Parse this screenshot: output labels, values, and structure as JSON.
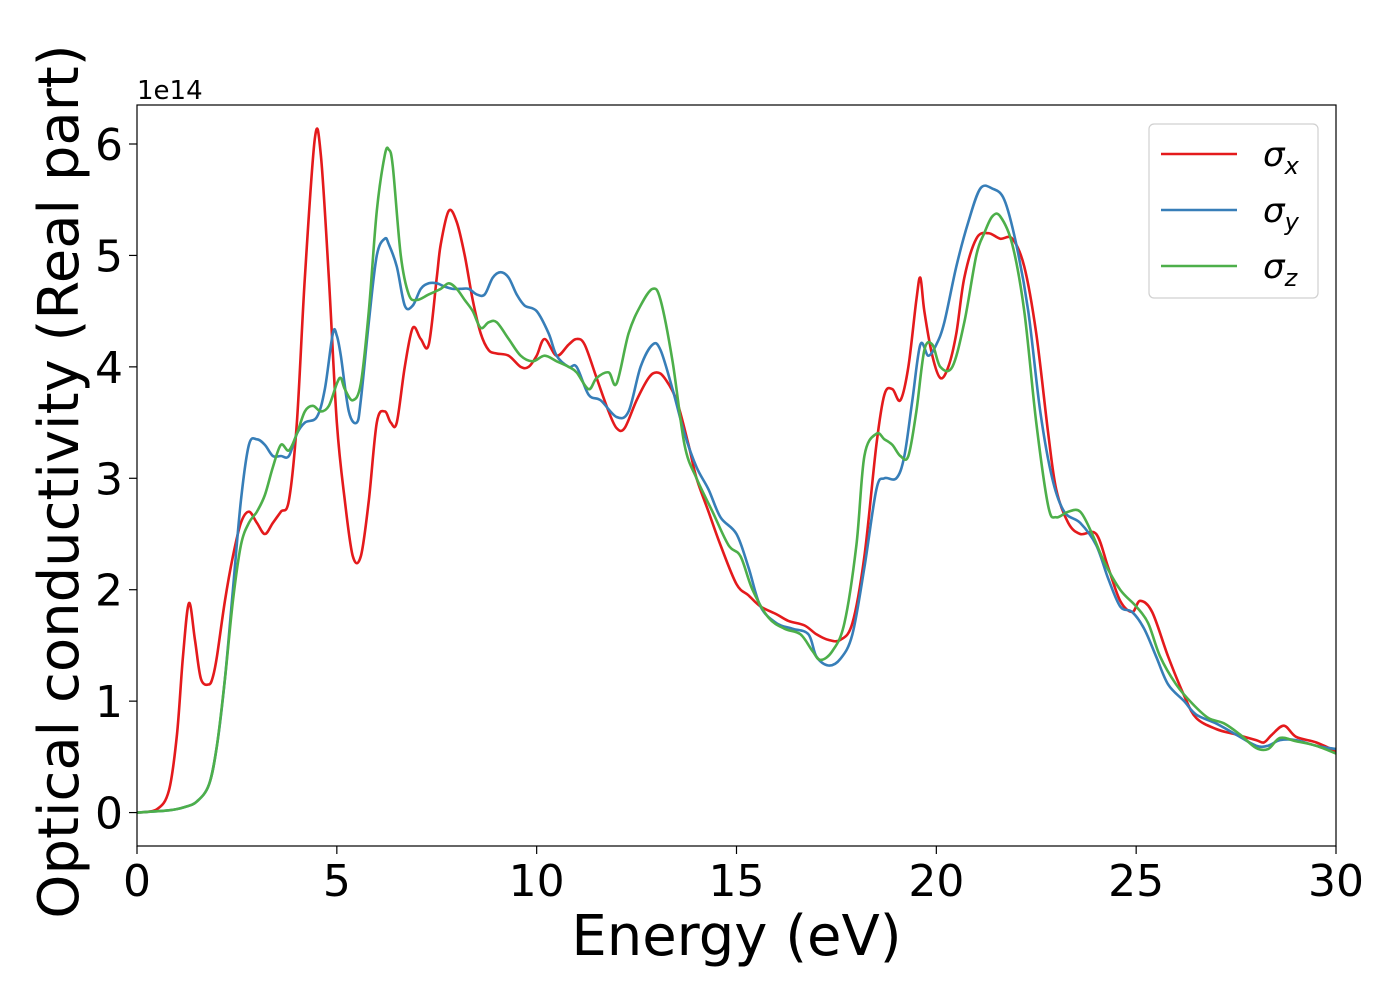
{
  "chart_data": {
    "type": "line",
    "title": "",
    "xlabel": "Energy (eV)",
    "ylabel": "Optical conductivity (Real part)",
    "offset_label": "1e14",
    "xlim": [
      0,
      30
    ],
    "ylim": [
      -0.3,
      6.35
    ],
    "y_multiplier": 100000000000000.0,
    "xticks": [
      0,
      5,
      10,
      15,
      20,
      25,
      30
    ],
    "yticks": [
      0,
      1,
      2,
      3,
      4,
      5,
      6
    ],
    "grid": false,
    "legend_position": "top-right",
    "series": [
      {
        "name": "σx",
        "legend": {
          "base": "σ",
          "sub": "x"
        },
        "color": "#e41a1c",
        "x": [
          0,
          0.5,
          0.8,
          1.0,
          1.15,
          1.3,
          1.45,
          1.6,
          1.8,
          1.9,
          2.0,
          2.2,
          2.4,
          2.6,
          2.8,
          3.0,
          3.2,
          3.4,
          3.6,
          3.8,
          4.0,
          4.2,
          4.45,
          4.6,
          4.8,
          5.0,
          5.2,
          5.4,
          5.6,
          5.8,
          6.0,
          6.2,
          6.35,
          6.5,
          6.7,
          6.9,
          7.1,
          7.3,
          7.5,
          7.6,
          7.8,
          8.0,
          8.2,
          8.4,
          8.6,
          8.8,
          9.0,
          9.3,
          9.6,
          9.8,
          10.0,
          10.2,
          10.5,
          10.8,
          11.0,
          11.2,
          11.5,
          11.8,
          12.0,
          12.2,
          12.5,
          12.8,
          13.0,
          13.2,
          13.5,
          13.8,
          14.0,
          14.3,
          14.6,
          15.0,
          15.3,
          15.6,
          16.0,
          16.3,
          16.7,
          17.0,
          17.3,
          17.6,
          17.9,
          18.2,
          18.5,
          18.7,
          18.9,
          19.1,
          19.3,
          19.5,
          19.6,
          19.7,
          19.9,
          20.1,
          20.3,
          20.5,
          20.7,
          21.0,
          21.3,
          21.6,
          21.9,
          22.2,
          22.5,
          22.8,
          23.0,
          23.3,
          23.6,
          24.0,
          24.3,
          24.6,
          24.9,
          25.1,
          25.4,
          25.8,
          26.2,
          26.5,
          27.0,
          27.5,
          28.0,
          28.2,
          28.4,
          28.7,
          29.0,
          29.5,
          30.0
        ],
        "y": [
          0.0,
          0.03,
          0.2,
          0.7,
          1.4,
          1.88,
          1.55,
          1.2,
          1.15,
          1.22,
          1.4,
          1.9,
          2.3,
          2.6,
          2.7,
          2.6,
          2.5,
          2.6,
          2.7,
          2.8,
          3.5,
          4.8,
          6.05,
          5.9,
          4.8,
          3.5,
          2.8,
          2.3,
          2.3,
          2.8,
          3.5,
          3.6,
          3.5,
          3.5,
          4.0,
          4.35,
          4.25,
          4.2,
          4.8,
          5.1,
          5.4,
          5.3,
          5.0,
          4.6,
          4.3,
          4.15,
          4.12,
          4.1,
          4.0,
          4.0,
          4.1,
          4.25,
          4.1,
          4.2,
          4.25,
          4.2,
          3.9,
          3.6,
          3.45,
          3.45,
          3.7,
          3.9,
          3.95,
          3.9,
          3.7,
          3.3,
          3.0,
          2.7,
          2.4,
          2.05,
          1.95,
          1.85,
          1.78,
          1.72,
          1.68,
          1.6,
          1.55,
          1.55,
          1.7,
          2.3,
          3.3,
          3.75,
          3.8,
          3.7,
          4.0,
          4.6,
          4.8,
          4.5,
          4.1,
          3.9,
          4.0,
          4.3,
          4.8,
          5.15,
          5.2,
          5.15,
          5.15,
          4.9,
          4.3,
          3.4,
          2.9,
          2.6,
          2.5,
          2.5,
          2.2,
          1.9,
          1.8,
          1.9,
          1.8,
          1.4,
          1.05,
          0.85,
          0.75,
          0.7,
          0.65,
          0.63,
          0.7,
          0.78,
          0.68,
          0.63,
          0.55
        ]
      },
      {
        "name": "σy",
        "legend": {
          "base": "σ",
          "sub": "y"
        },
        "color": "#377eb8",
        "x": [
          0,
          0.8,
          1.2,
          1.5,
          1.8,
          2.0,
          2.2,
          2.4,
          2.6,
          2.8,
          3.0,
          3.2,
          3.4,
          3.6,
          3.8,
          4.0,
          4.2,
          4.5,
          4.7,
          4.9,
          5.0,
          5.1,
          5.3,
          5.5,
          5.6,
          5.8,
          6.0,
          6.2,
          6.3,
          6.5,
          6.7,
          6.9,
          7.1,
          7.3,
          7.5,
          7.7,
          7.9,
          8.1,
          8.3,
          8.5,
          8.7,
          8.9,
          9.1,
          9.3,
          9.5,
          9.7,
          10.0,
          10.3,
          10.5,
          10.8,
          11.0,
          11.3,
          11.6,
          12.0,
          12.3,
          12.6,
          12.9,
          13.1,
          13.4,
          13.7,
          14.0,
          14.3,
          14.6,
          15.0,
          15.3,
          15.6,
          16.0,
          16.4,
          16.8,
          17.0,
          17.3,
          17.6,
          17.9,
          18.2,
          18.5,
          18.7,
          19.0,
          19.2,
          19.4,
          19.6,
          19.8,
          20.0,
          20.2,
          20.5,
          20.8,
          21.1,
          21.4,
          21.7,
          22.0,
          22.3,
          22.6,
          22.9,
          23.2,
          23.6,
          24.0,
          24.3,
          24.6,
          24.9,
          25.2,
          25.5,
          25.8,
          26.2,
          26.5,
          27.0,
          27.5,
          28.0,
          28.3,
          28.6,
          29.0,
          29.5,
          30.0
        ],
        "y": [
          0.0,
          0.02,
          0.05,
          0.1,
          0.25,
          0.6,
          1.2,
          2.0,
          2.8,
          3.3,
          3.35,
          3.3,
          3.2,
          3.2,
          3.2,
          3.4,
          3.5,
          3.55,
          3.8,
          4.3,
          4.28,
          4.1,
          3.6,
          3.5,
          3.7,
          4.4,
          5.0,
          5.15,
          5.1,
          4.9,
          4.55,
          4.55,
          4.7,
          4.75,
          4.75,
          4.72,
          4.7,
          4.7,
          4.7,
          4.65,
          4.65,
          4.8,
          4.85,
          4.8,
          4.65,
          4.55,
          4.5,
          4.3,
          4.1,
          4.0,
          4.0,
          3.75,
          3.7,
          3.55,
          3.6,
          4.0,
          4.2,
          4.15,
          3.8,
          3.4,
          3.1,
          2.9,
          2.65,
          2.5,
          2.2,
          1.85,
          1.7,
          1.65,
          1.6,
          1.4,
          1.32,
          1.38,
          1.6,
          2.2,
          2.9,
          3.0,
          3.0,
          3.2,
          3.7,
          4.2,
          4.1,
          4.2,
          4.4,
          4.9,
          5.3,
          5.6,
          5.6,
          5.5,
          5.1,
          4.5,
          3.6,
          3.0,
          2.7,
          2.6,
          2.4,
          2.1,
          1.85,
          1.8,
          1.65,
          1.4,
          1.15,
          1.0,
          0.88,
          0.8,
          0.7,
          0.6,
          0.6,
          0.65,
          0.65,
          0.6,
          0.57
        ]
      },
      {
        "name": "σz",
        "legend": {
          "base": "σ",
          "sub": "z"
        },
        "color": "#4daf4a",
        "x": [
          0,
          0.8,
          1.2,
          1.5,
          1.8,
          2.0,
          2.2,
          2.4,
          2.6,
          2.8,
          3.0,
          3.2,
          3.4,
          3.6,
          3.8,
          4.0,
          4.2,
          4.4,
          4.6,
          4.8,
          5.0,
          5.1,
          5.2,
          5.4,
          5.6,
          5.8,
          6.0,
          6.2,
          6.3,
          6.4,
          6.6,
          6.8,
          7.0,
          7.3,
          7.6,
          7.8,
          8.0,
          8.2,
          8.4,
          8.6,
          8.8,
          9.0,
          9.3,
          9.6,
          9.9,
          10.2,
          10.5,
          10.8,
          11.0,
          11.3,
          11.5,
          11.8,
          12.0,
          12.3,
          12.6,
          12.9,
          13.1,
          13.4,
          13.7,
          14.0,
          14.4,
          14.8,
          15.1,
          15.4,
          15.8,
          16.2,
          16.6,
          16.9,
          17.1,
          17.4,
          17.7,
          18.0,
          18.2,
          18.5,
          18.7,
          18.9,
          19.1,
          19.3,
          19.5,
          19.7,
          19.9,
          20.1,
          20.4,
          20.7,
          21.0,
          21.2,
          21.4,
          21.6,
          21.9,
          22.2,
          22.5,
          22.8,
          23.0,
          23.3,
          23.6,
          23.9,
          24.2,
          24.6,
          25.0,
          25.3,
          25.6,
          26.0,
          26.4,
          26.8,
          27.2,
          27.6,
          28.0,
          28.3,
          28.6,
          29.0,
          29.5,
          30.0
        ],
        "y": [
          0.0,
          0.02,
          0.05,
          0.1,
          0.25,
          0.6,
          1.2,
          1.9,
          2.4,
          2.6,
          2.7,
          2.85,
          3.1,
          3.3,
          3.25,
          3.4,
          3.6,
          3.65,
          3.6,
          3.65,
          3.85,
          3.9,
          3.8,
          3.7,
          3.85,
          4.5,
          5.4,
          5.9,
          5.95,
          5.8,
          5.0,
          4.65,
          4.6,
          4.65,
          4.7,
          4.75,
          4.7,
          4.6,
          4.5,
          4.35,
          4.4,
          4.4,
          4.25,
          4.1,
          4.05,
          4.1,
          4.05,
          4.0,
          3.95,
          3.8,
          3.9,
          3.95,
          3.85,
          4.3,
          4.55,
          4.7,
          4.6,
          4.05,
          3.3,
          3.0,
          2.7,
          2.4,
          2.3,
          2.0,
          1.75,
          1.65,
          1.6,
          1.45,
          1.37,
          1.45,
          1.7,
          2.4,
          3.2,
          3.4,
          3.35,
          3.3,
          3.2,
          3.2,
          3.6,
          4.15,
          4.2,
          4.0,
          4.0,
          4.4,
          5.0,
          5.2,
          5.35,
          5.35,
          5.1,
          4.5,
          3.5,
          2.75,
          2.65,
          2.7,
          2.7,
          2.5,
          2.25,
          2.0,
          1.85,
          1.7,
          1.4,
          1.15,
          0.98,
          0.85,
          0.8,
          0.7,
          0.58,
          0.57,
          0.67,
          0.64,
          0.6,
          0.53
        ]
      }
    ]
  }
}
